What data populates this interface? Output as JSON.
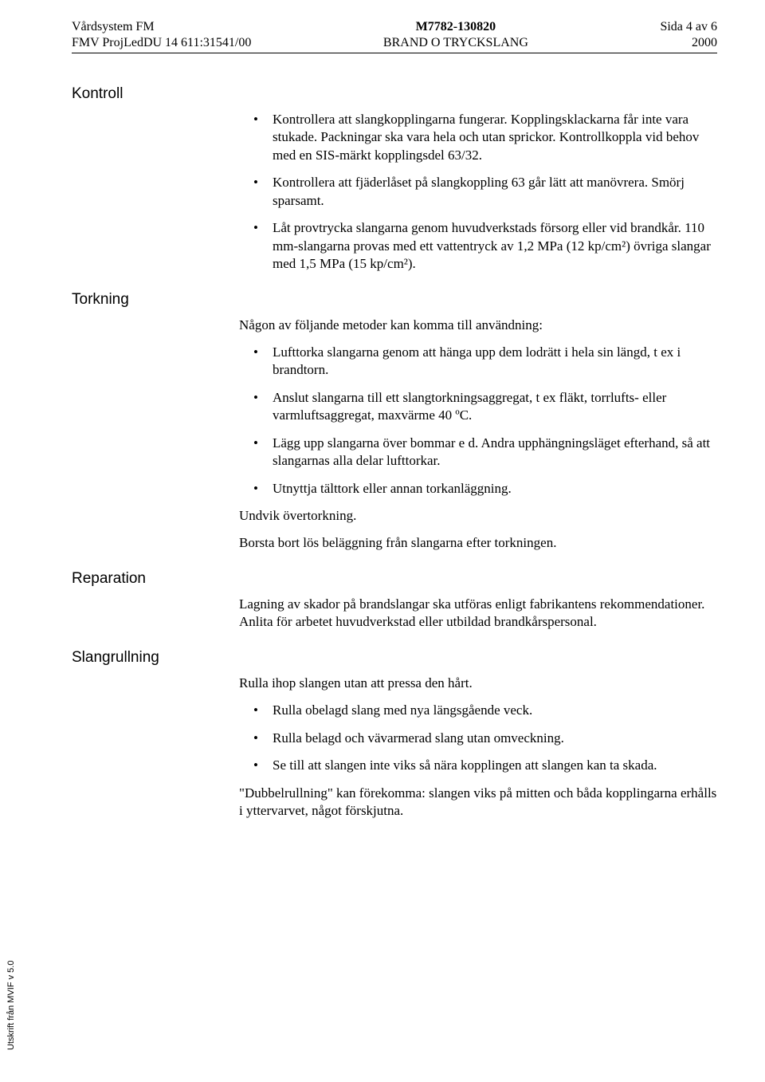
{
  "colors": {
    "text": "#000000",
    "background": "#ffffff",
    "rule": "#000000"
  },
  "typography": {
    "body_font": "Times New Roman",
    "body_size_pt": 12,
    "heading_font": "Arial",
    "heading_size_pt": 13,
    "header_size_pt": 11,
    "sidebar_size_pt": 8
  },
  "header": {
    "left_line1": "Vårdsystem FM",
    "left_line2": "FMV ProjLedDU 14 611:31541/00",
    "center_line1": "M7782-130820",
    "center_line2": "BRAND O TRYCKSLANG",
    "right_line1": "Sida 4 av 6",
    "right_line2": "2000"
  },
  "sections": {
    "kontroll": {
      "heading": "Kontroll",
      "bullets": [
        "Kontrollera att slangkopplingarna fungerar. Kopplingsklackarna får inte vara stukade. Packningar ska vara hela och utan sprickor. Kontrollkoppla vid behov med en SIS-märkt kopplingsdel 63/32.",
        "Kontrollera att fjäderlåset på slangkoppling 63 går lätt att manövrera. Smörj sparsamt.",
        "Låt provtrycka slangarna genom huvudverkstads försorg eller vid brandkår.\n110 mm-slangarna provas med ett vattentryck av 1,2 MPa (12 kp/cm²) övriga slangar med 1,5 MPa (15 kp/cm²)."
      ]
    },
    "torkning": {
      "heading": "Torkning",
      "intro": "Någon av följande metoder kan komma till användning:",
      "bullets": [
        "Lufttorka slangarna genom att hänga upp dem lodrätt i hela sin längd, t ex i brandtorn.",
        "Anslut slangarna till ett slangtorkningsaggregat, t ex fläkt, torrlufts- eller varmluftsaggregat, maxvärme 40 ºC.",
        "Lägg upp slangarna över bommar e d. Andra upphängningsläget efterhand, så att slangarnas alla delar lufttorkar.",
        "Utnyttja tälttork eller annan torkanläggning."
      ],
      "after1": "Undvik övertorkning.",
      "after2": "Borsta bort lös beläggning från slangarna efter torkningen."
    },
    "reparation": {
      "heading": "Reparation",
      "para": "Lagning av skador på brandslangar ska utföras enligt fabrikantens rekommendationer. Anlita för arbetet huvudverkstad eller utbildad brandkårspersonal."
    },
    "slangrullning": {
      "heading": "Slangrullning",
      "intro": "Rulla ihop slangen utan att pressa den hårt.",
      "bullets": [
        "Rulla obelagd slang med nya längsgående veck.",
        "Rulla belagd och vävarmerad slang utan omveckning.",
        "Se till att slangen inte viks så nära kopplingen att slangen kan ta skada."
      ],
      "after": "\"Dubbelrullning\" kan förekomma: slangen viks på mitten och båda kopplingarna erhålls i yttervarvet, något förskjutna."
    }
  },
  "sidebar_note": "Utskrift från MVIF v 5.0"
}
